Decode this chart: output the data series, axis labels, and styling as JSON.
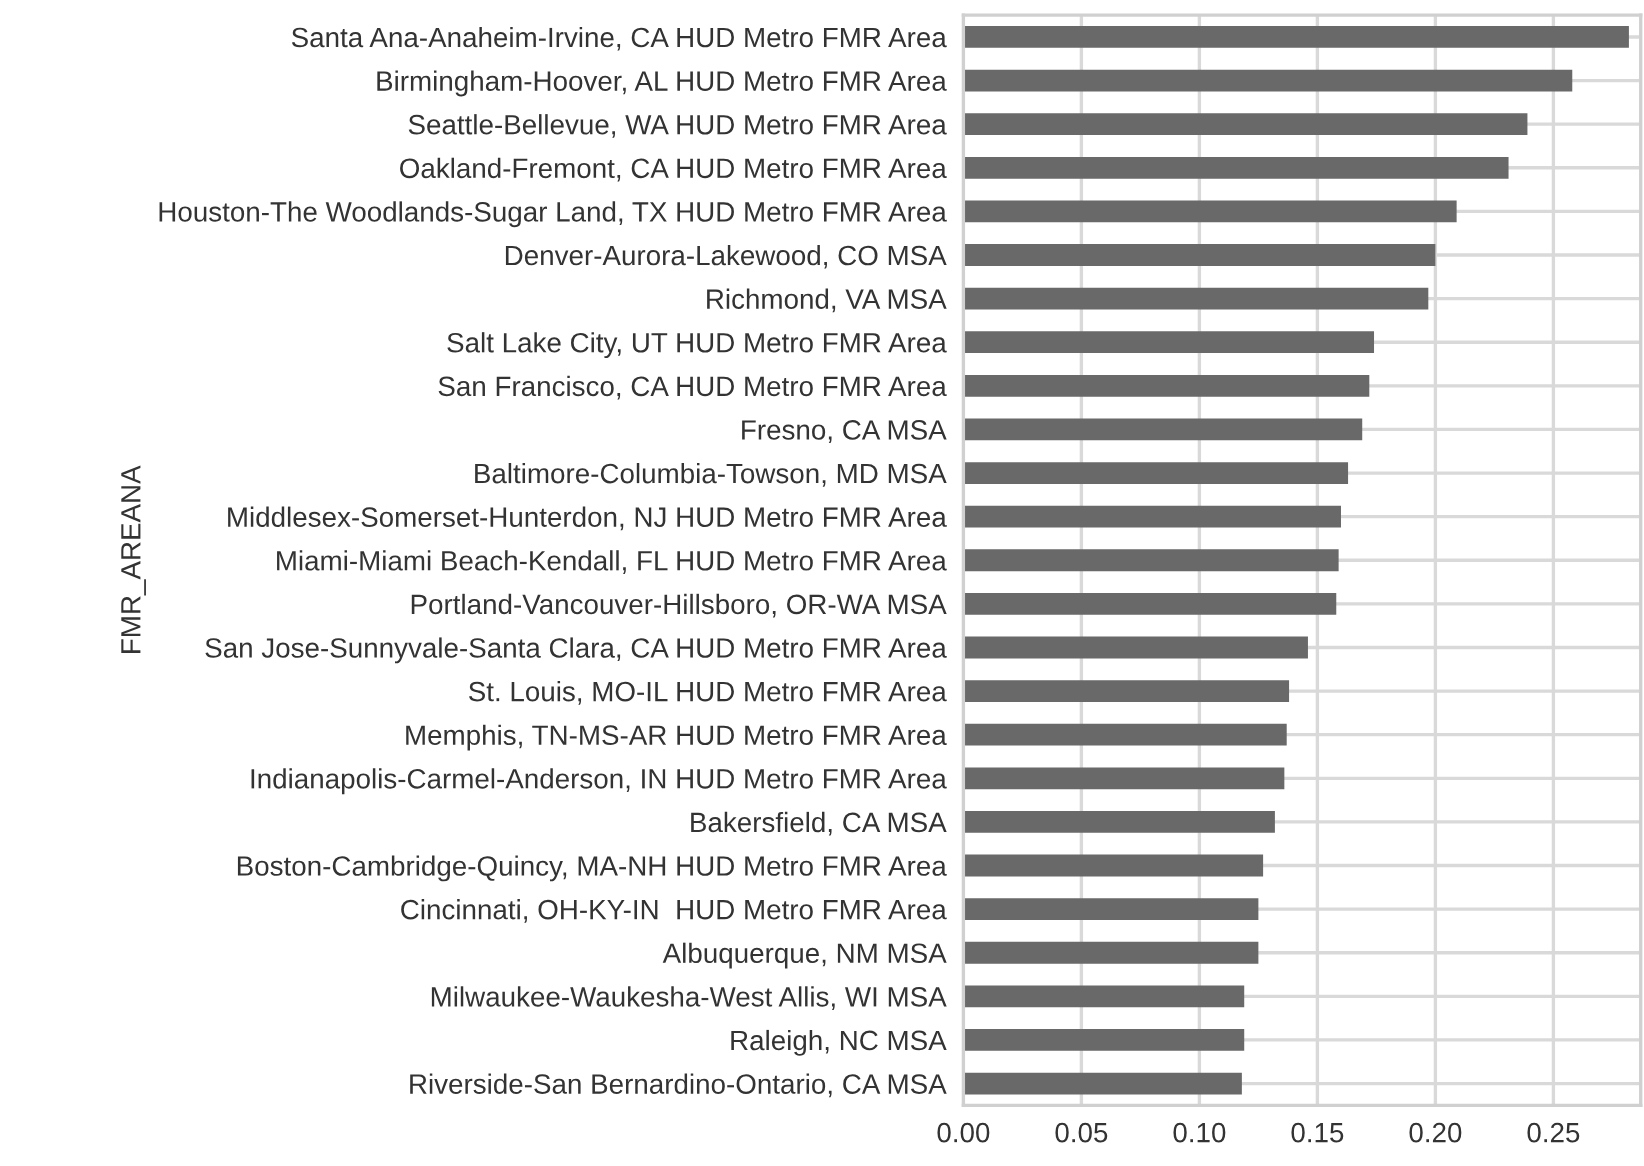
{
  "chart_data": {
    "type": "bar",
    "orientation": "horizontal",
    "ylabel": "FMR_AREANA",
    "categories": [
      "Santa Ana-Anaheim-Irvine, CA HUD Metro FMR Area",
      "Birmingham-Hoover, AL HUD Metro FMR Area",
      "Seattle-Bellevue, WA HUD Metro FMR Area",
      "Oakland-Fremont, CA HUD Metro FMR Area",
      "Houston-The Woodlands-Sugar Land, TX HUD Metro FMR Area",
      "Denver-Aurora-Lakewood, CO MSA",
      "Richmond, VA MSA",
      "Salt Lake City, UT HUD Metro FMR Area",
      "San Francisco, CA HUD Metro FMR Area",
      "Fresno, CA MSA",
      "Baltimore-Columbia-Towson, MD MSA",
      "Middlesex-Somerset-Hunterdon, NJ HUD Metro FMR Area",
      "Miami-Miami Beach-Kendall, FL HUD Metro FMR Area",
      "Portland-Vancouver-Hillsboro, OR-WA MSA",
      "San Jose-Sunnyvale-Santa Clara, CA HUD Metro FMR Area",
      "St. Louis, MO-IL HUD Metro FMR Area",
      "Memphis, TN-MS-AR HUD Metro FMR Area",
      "Indianapolis-Carmel-Anderson, IN HUD Metro FMR Area",
      "Bakersfield, CA MSA",
      "Boston-Cambridge-Quincy, MA-NH HUD Metro FMR Area",
      "Cincinnati, OH-KY-IN  HUD Metro FMR Area",
      "Albuquerque, NM MSA",
      "Milwaukee-Waukesha-West Allis, WI MSA",
      "Raleigh, NC MSA",
      "Riverside-San Bernardino-Ontario, CA MSA"
    ],
    "values": [
      0.282,
      0.258,
      0.239,
      0.231,
      0.209,
      0.2,
      0.197,
      0.174,
      0.172,
      0.169,
      0.163,
      0.16,
      0.159,
      0.158,
      0.146,
      0.138,
      0.137,
      0.136,
      0.132,
      0.127,
      0.125,
      0.125,
      0.119,
      0.119,
      0.118
    ],
    "color": "#696969",
    "xlim": [
      0,
      0.287
    ],
    "xticks": [
      {
        "value": 0,
        "label": "0.00"
      },
      {
        "value": 0.05,
        "label": "0.05"
      },
      {
        "value": 0.1,
        "label": "0.10"
      },
      {
        "value": 0.15,
        "label": "0.15"
      },
      {
        "value": 0.2,
        "label": "0.20"
      },
      {
        "value": 0.25,
        "label": "0.25"
      }
    ],
    "grid": true
  }
}
